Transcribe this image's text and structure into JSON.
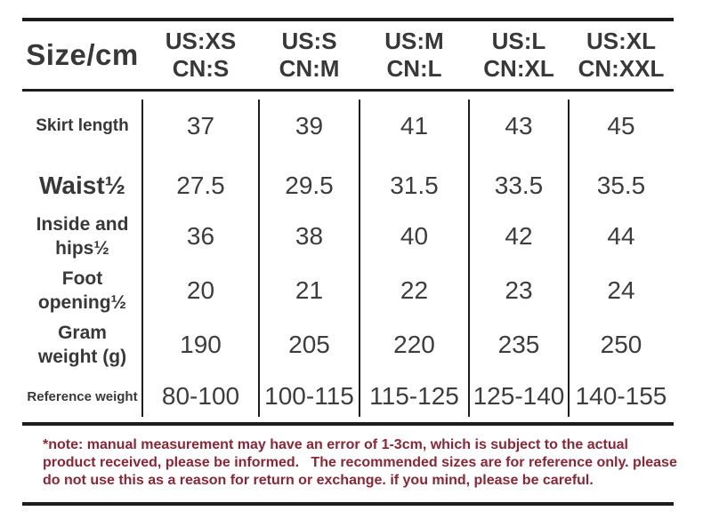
{
  "table": {
    "corner_label": "Size/cm",
    "columns": [
      "US:XS\nCN:S",
      "US:S\nCN:M",
      "US:M\nCN:L",
      "US:L\nCN:XL",
      "US:XL\nCN:XXL"
    ],
    "rows": [
      {
        "label": "Skirt length",
        "values": [
          "37",
          "39",
          "41",
          "43",
          "45"
        ]
      },
      {
        "label": "Waist½",
        "values": [
          "27.5",
          "29.5",
          "31.5",
          "33.5",
          "35.5"
        ]
      },
      {
        "label": "Inside and hips½",
        "values": [
          "36",
          "38",
          "40",
          "42",
          "44"
        ]
      },
      {
        "label": "Foot opening½",
        "values": [
          "20",
          "21",
          "22",
          "23",
          "24"
        ]
      },
      {
        "label": "Gram weight (g)",
        "values": [
          "190",
          "205",
          "220",
          "235",
          "250"
        ]
      },
      {
        "label": "Reference weight",
        "values": [
          "80-100",
          "100-115",
          "115-125",
          "125-140",
          "140-155"
        ]
      }
    ]
  },
  "note": {
    "lines": [
      "*note: manual measurement may have an error of 1-3cm, which is subject to the actual",
      "product received, please be informed.   The recommended sizes are for reference only. please",
      "do not use this as a reason for return or exchange. if you mind, please be careful."
    ]
  },
  "colors": {
    "text": "#383838",
    "line": "#1d1d1d",
    "note_text": "#8a2635",
    "background": "#ffffff"
  }
}
